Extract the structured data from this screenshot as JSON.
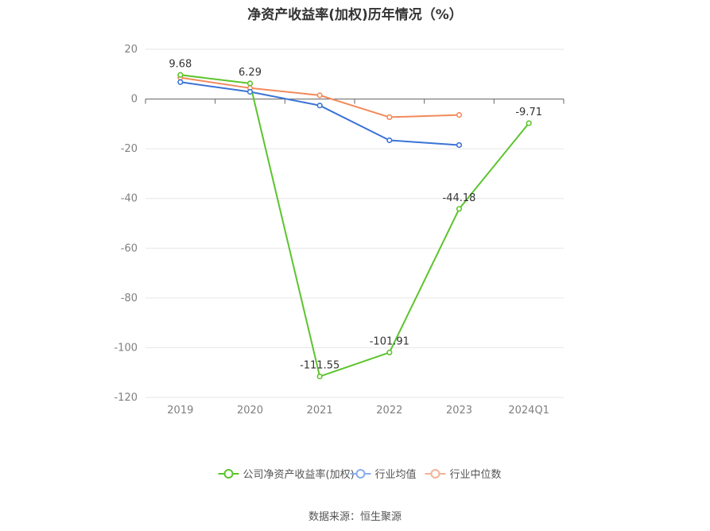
{
  "chart_data": {
    "type": "line",
    "title": "净资产收益率(加权)历年情况（%）",
    "categories": [
      "2019",
      "2020",
      "2021",
      "2022",
      "2023",
      "2024Q1"
    ],
    "ylim": [
      -120,
      20
    ],
    "yticks": [
      "20",
      "0",
      "-20",
      "-40",
      "-60",
      "-80",
      "-100",
      "-120"
    ],
    "grid": true,
    "legend_position": "bottom-center",
    "series": [
      {
        "name": "公司净资产收益率(加权)",
        "color": "#5cc42c",
        "values": [
          9.68,
          6.29,
          -111.55,
          -101.91,
          -44.18,
          -9.71
        ],
        "labels": [
          "9.68",
          "6.29",
          "-111.55",
          "-101.91",
          "-44.18",
          "-9.71"
        ]
      },
      {
        "name": "行业均值",
        "color": "#3b73d6",
        "values": [
          6.8,
          2.9,
          -2.6,
          -16.6,
          -18.5,
          null
        ]
      },
      {
        "name": "行业中位数",
        "color": "#f28a5c",
        "values": [
          8.6,
          4.4,
          1.5,
          -7.3,
          -6.4,
          null
        ]
      }
    ]
  },
  "legend": {
    "items": [
      {
        "label": "公司净资产收益率(加权)",
        "color": "#5cc42c"
      },
      {
        "label": "行业均值",
        "color": "#8aabee"
      },
      {
        "label": "行业中位数",
        "color": "#f5b295"
      }
    ]
  },
  "source": "数据来源：恒生聚源"
}
